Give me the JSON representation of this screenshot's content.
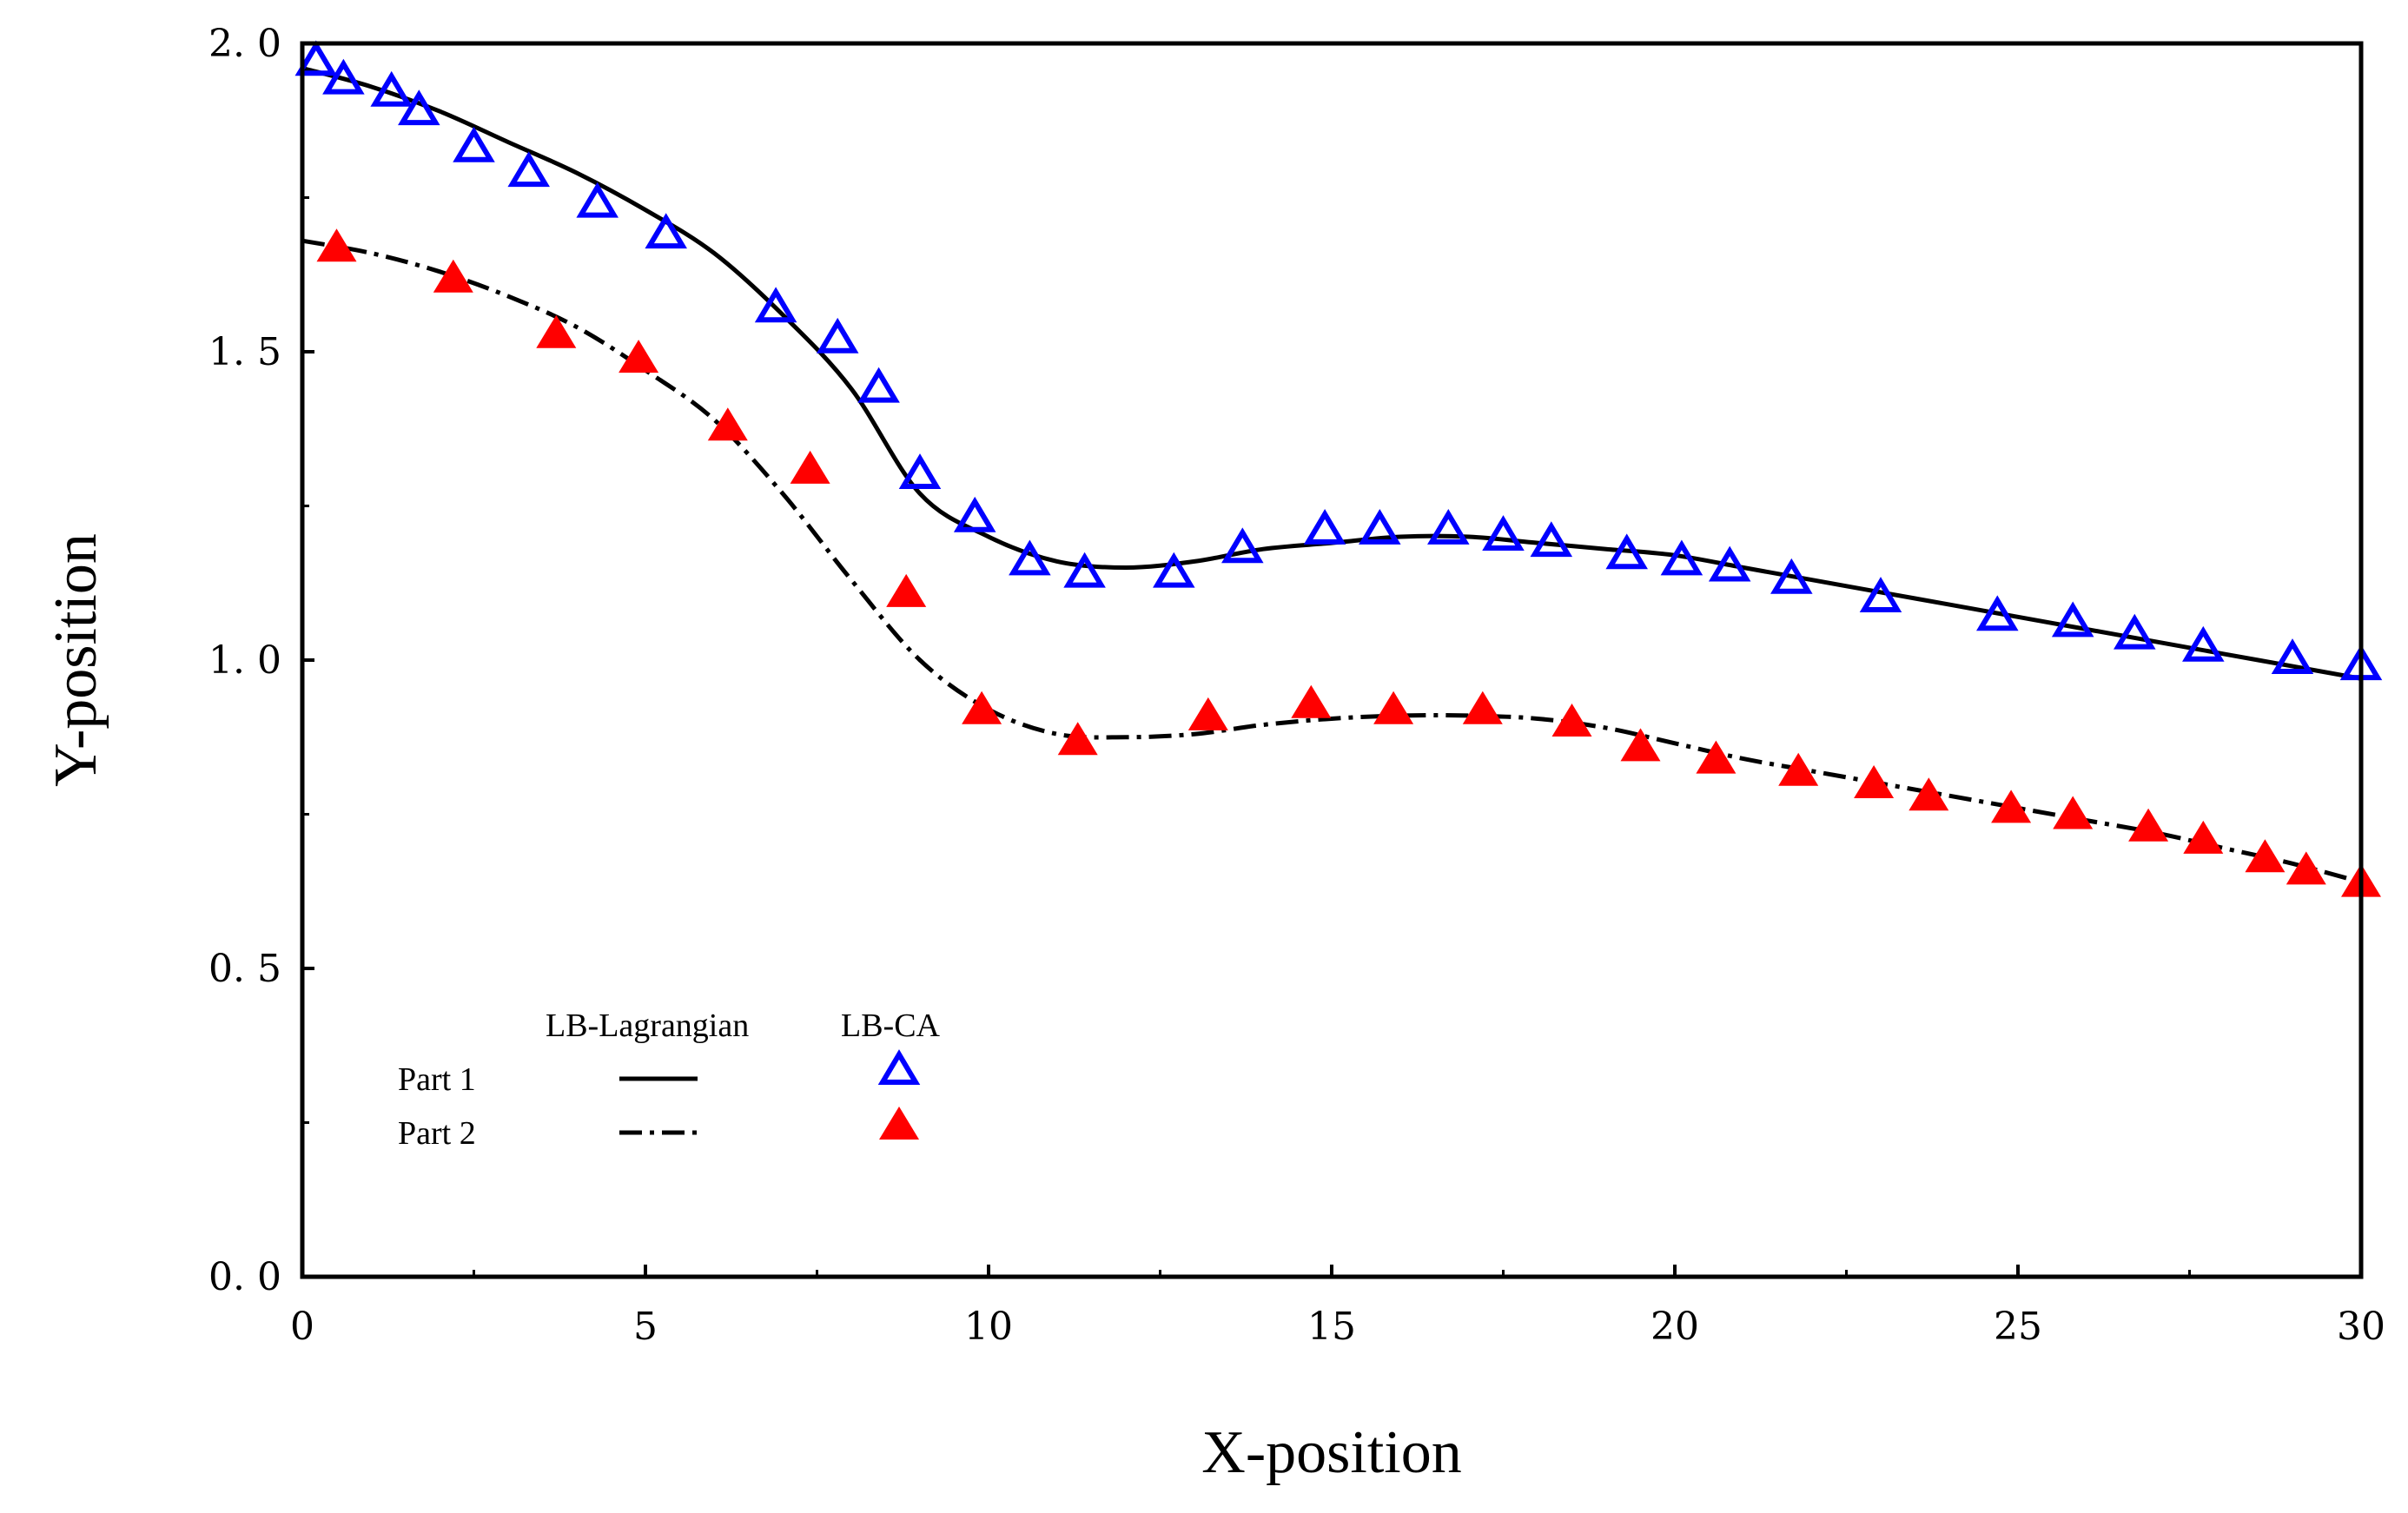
{
  "chart_data": {
    "type": "line",
    "title": "",
    "xlabel": "X-position",
    "ylabel": "Y-position",
    "xlim": [
      0,
      30
    ],
    "ylim": [
      0,
      2.0
    ],
    "xticks": [
      0,
      5,
      10,
      15,
      20,
      25,
      30
    ],
    "xtick_labels": [
      "0",
      "5",
      "10",
      "15",
      "20",
      "25",
      "30"
    ],
    "yticks": [
      0,
      0.5,
      1.0,
      1.5,
      2.0
    ],
    "ytick_labels": [
      "0. 0",
      "0. 5",
      "1. 0",
      "1. 5",
      "2. 0"
    ],
    "grid": false,
    "legend": {
      "placement": "lower-left",
      "column_headers": [
        "LB-Lagrangian",
        "LB-CA"
      ],
      "rows": [
        "Part 1",
        "Part 2"
      ]
    },
    "series": [
      {
        "name": "Part 1 LB-Lagrangian",
        "kind": "line",
        "style": "solid",
        "color": "#000000",
        "x": [
          0,
          1,
          2,
          3,
          4,
          5,
          6,
          7,
          8,
          9,
          10,
          11,
          12,
          13,
          14,
          15,
          16,
          17,
          18,
          19,
          20,
          21,
          22,
          23,
          24,
          25,
          26,
          27,
          28,
          29,
          30
        ],
        "y": [
          1.96,
          1.93,
          1.89,
          1.84,
          1.79,
          1.73,
          1.66,
          1.56,
          1.44,
          1.27,
          1.2,
          1.16,
          1.15,
          1.16,
          1.18,
          1.19,
          1.2,
          1.2,
          1.19,
          1.18,
          1.17,
          1.15,
          1.13,
          1.11,
          1.09,
          1.07,
          1.05,
          1.03,
          1.01,
          0.99,
          0.97
        ]
      },
      {
        "name": "Part 2 LB-Lagrangian",
        "kind": "line",
        "style": "dash-dot",
        "color": "#000000",
        "x": [
          0,
          1,
          2,
          3,
          4,
          5,
          6,
          7,
          8,
          9,
          10,
          11,
          12,
          13,
          14,
          15,
          16,
          17,
          18,
          19,
          20,
          21,
          22,
          23,
          24,
          25,
          26,
          27,
          28,
          29,
          30
        ],
        "y": [
          1.68,
          1.66,
          1.63,
          1.59,
          1.54,
          1.47,
          1.39,
          1.27,
          1.13,
          1.0,
          0.92,
          0.88,
          0.875,
          0.88,
          0.895,
          0.905,
          0.91,
          0.91,
          0.905,
          0.89,
          0.865,
          0.84,
          0.82,
          0.8,
          0.78,
          0.76,
          0.74,
          0.72,
          0.695,
          0.67,
          0.64
        ]
      },
      {
        "name": "Part 1 LB-CA",
        "kind": "scatter",
        "marker": "open-triangle",
        "color": "#0000ff",
        "x": [
          0.2,
          0.6,
          1.3,
          1.7,
          2.5,
          3.3,
          4.3,
          5.3,
          6.9,
          7.8,
          8.4,
          9.0,
          9.8,
          10.6,
          11.4,
          12.7,
          13.7,
          14.9,
          15.7,
          16.7,
          17.5,
          18.2,
          19.3,
          20.1,
          20.8,
          21.7,
          23.0,
          24.7,
          25.8,
          26.7,
          27.7,
          29.0,
          30.0
        ],
        "y": [
          1.97,
          1.94,
          1.92,
          1.89,
          1.83,
          1.79,
          1.74,
          1.69,
          1.57,
          1.52,
          1.44,
          1.3,
          1.23,
          1.16,
          1.14,
          1.14,
          1.18,
          1.21,
          1.21,
          1.21,
          1.2,
          1.19,
          1.17,
          1.16,
          1.15,
          1.13,
          1.1,
          1.07,
          1.06,
          1.04,
          1.02,
          1.0,
          0.99
        ]
      },
      {
        "name": "Part 2 LB-CA",
        "kind": "scatter",
        "marker": "filled-triangle",
        "color": "#ff0000",
        "x": [
          0.5,
          2.2,
          3.7,
          4.9,
          6.2,
          7.4,
          8.8,
          9.9,
          11.3,
          13.2,
          14.7,
          15.9,
          17.2,
          18.5,
          19.5,
          20.6,
          21.8,
          22.9,
          23.7,
          24.9,
          25.8,
          26.9,
          27.7,
          28.6,
          29.2,
          30.0
        ],
        "y": [
          1.67,
          1.62,
          1.53,
          1.49,
          1.38,
          1.31,
          1.11,
          0.92,
          0.87,
          0.91,
          0.93,
          0.92,
          0.92,
          0.9,
          0.86,
          0.84,
          0.82,
          0.8,
          0.78,
          0.76,
          0.75,
          0.73,
          0.71,
          0.68,
          0.66,
          0.64
        ]
      }
    ]
  }
}
